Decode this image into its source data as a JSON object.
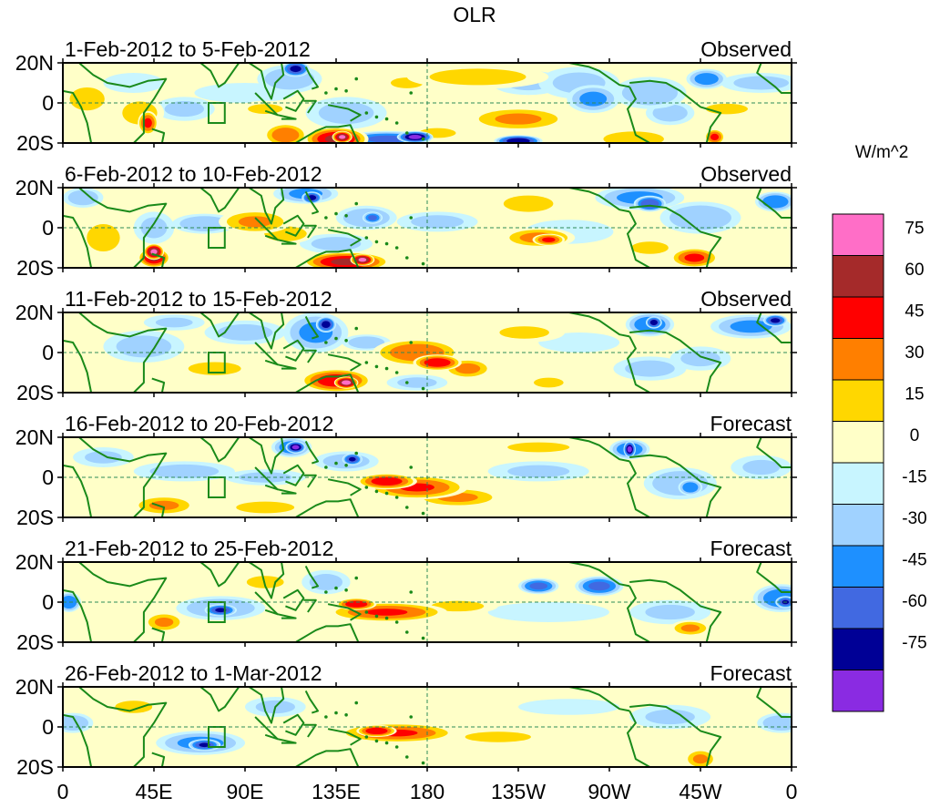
{
  "title": "OLR",
  "colorbar": {
    "unit_label": "W/m^2",
    "levels": [
      "75",
      "60",
      "45",
      "30",
      "15",
      "0",
      "-15",
      "-30",
      "-45",
      "-60",
      "-75"
    ],
    "colors": [
      "#ff6ec7",
      "#a52a2a",
      "#ff0000",
      "#ff7f00",
      "#ffd700",
      "#ffffc8",
      "#c8f5ff",
      "#a0d2ff",
      "#1e90ff",
      "#4169e1",
      "#000096",
      "#8a2be2"
    ]
  },
  "map_style": {
    "background": "#ffffc8",
    "coast_color": "#1a8a1a",
    "grid_color": "#2e8b57"
  },
  "x_ticks": [
    "0",
    "45E",
    "90E",
    "135E",
    "180",
    "135W",
    "90W",
    "45W",
    "0"
  ],
  "y_ticks": [
    "20N",
    "0",
    "20S"
  ],
  "panels": [
    {
      "period": "1-Feb-2012 to 5-Feb-2012",
      "kind": "Observed",
      "blobs": [
        {
          "lon": 262,
          "lat": 2,
          "rx": 13,
          "ry": 7,
          "v": -35
        },
        {
          "lon": 255,
          "lat": 10,
          "rx": 20,
          "ry": 8,
          "v": -20
        },
        {
          "lon": 230,
          "lat": 10,
          "rx": 18,
          "ry": 6,
          "v": -18
        },
        {
          "lon": 290,
          "lat": 5,
          "rx": 18,
          "ry": 8,
          "v": -30
        },
        {
          "lon": 300,
          "lat": -5,
          "rx": 12,
          "ry": 6,
          "v": -25
        },
        {
          "lon": 318,
          "lat": 12,
          "rx": 10,
          "ry": 5,
          "v": -40
        },
        {
          "lon": 345,
          "lat": 10,
          "rx": 20,
          "ry": 5,
          "v": -22
        },
        {
          "lon": 115,
          "lat": 17,
          "rx": 7,
          "ry": 4,
          "v": -65
        },
        {
          "lon": 112,
          "lat": 12,
          "rx": 16,
          "ry": 7,
          "v": -30
        },
        {
          "lon": 160,
          "lat": -18,
          "rx": 22,
          "ry": 4,
          "v": -50
        },
        {
          "lon": 174,
          "lat": -17,
          "rx": 9,
          "ry": 3,
          "v": -80
        },
        {
          "lon": 225,
          "lat": -19,
          "rx": 12,
          "ry": 3,
          "v": -72
        },
        {
          "lon": 140,
          "lat": -5,
          "rx": 20,
          "ry": 8,
          "v": -22
        },
        {
          "lon": 60,
          "lat": -3,
          "rx": 15,
          "ry": 6,
          "v": -20
        },
        {
          "lon": 90,
          "lat": 5,
          "rx": 25,
          "ry": 5,
          "v": -15
        },
        {
          "lon": 35,
          "lat": 10,
          "rx": 15,
          "ry": 5,
          "v": -15
        },
        {
          "lon": 12,
          "lat": 2,
          "rx": 12,
          "ry": 8,
          "v": 25
        },
        {
          "lon": 38,
          "lat": -5,
          "rx": 12,
          "ry": 8,
          "v": 25
        },
        {
          "lon": 42,
          "lat": -10,
          "rx": 5,
          "ry": 6,
          "v": 48
        },
        {
          "lon": 110,
          "lat": -16,
          "rx": 11,
          "ry": 6,
          "v": 42
        },
        {
          "lon": 135,
          "lat": -18,
          "rx": 16,
          "ry": 6,
          "v": 62
        },
        {
          "lon": 138,
          "lat": -17,
          "rx": 5,
          "ry": 3,
          "v": 78
        },
        {
          "lon": 100,
          "lat": -3,
          "rx": 14,
          "ry": 4,
          "v": 18
        },
        {
          "lon": 225,
          "lat": -8,
          "rx": 25,
          "ry": 6,
          "v": 32
        },
        {
          "lon": 205,
          "lat": 13,
          "rx": 35,
          "ry": 6,
          "v": 22
        },
        {
          "lon": 170,
          "lat": 10,
          "rx": 15,
          "ry": 5,
          "v": 15
        },
        {
          "lon": 282,
          "lat": -18,
          "rx": 20,
          "ry": 5,
          "v": 28
        },
        {
          "lon": 322,
          "lat": -17,
          "rx": 5,
          "ry": 4,
          "v": 48
        },
        {
          "lon": 328,
          "lat": -3,
          "rx": 16,
          "ry": 4,
          "v": 20
        },
        {
          "lon": 185,
          "lat": -15,
          "rx": 15,
          "ry": 4,
          "v": 18
        }
      ]
    },
    {
      "period": "6-Feb-2012 to 10-Feb-2012",
      "kind": "Observed",
      "blobs": [
        {
          "lon": 10,
          "lat": 15,
          "rx": 10,
          "ry": 5,
          "v": -28
        },
        {
          "lon": 120,
          "lat": 17,
          "rx": 16,
          "ry": 5,
          "v": -35
        },
        {
          "lon": 123,
          "lat": 15,
          "rx": 5,
          "ry": 3,
          "v": -68
        },
        {
          "lon": 150,
          "lat": 5,
          "rx": 15,
          "ry": 6,
          "v": -30
        },
        {
          "lon": 153,
          "lat": 5,
          "rx": 5,
          "ry": 3,
          "v": -50
        },
        {
          "lon": 285,
          "lat": 15,
          "rx": 22,
          "ry": 6,
          "v": -35
        },
        {
          "lon": 290,
          "lat": 12,
          "rx": 8,
          "ry": 4,
          "v": -60
        },
        {
          "lon": 315,
          "lat": 5,
          "rx": 20,
          "ry": 8,
          "v": -30
        },
        {
          "lon": 352,
          "lat": 13,
          "rx": 10,
          "ry": 5,
          "v": -45
        },
        {
          "lon": 70,
          "lat": 2,
          "rx": 16,
          "ry": 5,
          "v": -30
        },
        {
          "lon": 185,
          "lat": 3,
          "rx": 20,
          "ry": 5,
          "v": -20
        },
        {
          "lon": 250,
          "lat": -2,
          "rx": 22,
          "ry": 6,
          "v": -15
        },
        {
          "lon": 45,
          "lat": 0,
          "rx": 10,
          "ry": 8,
          "v": -20
        },
        {
          "lon": 135,
          "lat": -8,
          "rx": 18,
          "ry": 5,
          "v": -22
        },
        {
          "lon": 20,
          "lat": -5,
          "rx": 12,
          "ry": 10,
          "v": 22
        },
        {
          "lon": 45,
          "lat": -15,
          "rx": 8,
          "ry": 5,
          "v": 62
        },
        {
          "lon": 45,
          "lat": -12,
          "rx": 5,
          "ry": 4,
          "v": 78
        },
        {
          "lon": 95,
          "lat": 3,
          "rx": 18,
          "ry": 6,
          "v": 32
        },
        {
          "lon": 110,
          "lat": -3,
          "rx": 14,
          "ry": 5,
          "v": 28
        },
        {
          "lon": 140,
          "lat": -17,
          "rx": 22,
          "ry": 5,
          "v": 62
        },
        {
          "lon": 148,
          "lat": -16,
          "rx": 6,
          "ry": 3,
          "v": 78
        },
        {
          "lon": 235,
          "lat": -5,
          "rx": 18,
          "ry": 5,
          "v": 35
        },
        {
          "lon": 240,
          "lat": -6,
          "rx": 8,
          "ry": 3,
          "v": 48
        },
        {
          "lon": 230,
          "lat": 12,
          "rx": 18,
          "ry": 6,
          "v": 22
        },
        {
          "lon": 312,
          "lat": -15,
          "rx": 12,
          "ry": 5,
          "v": 48
        },
        {
          "lon": 290,
          "lat": -10,
          "rx": 15,
          "ry": 5,
          "v": 18
        }
      ]
    },
    {
      "period": "11-Feb-2012 to 15-Feb-2012",
      "kind": "Observed",
      "blobs": [
        {
          "lon": 125,
          "lat": 10,
          "rx": 16,
          "ry": 10,
          "v": -35
        },
        {
          "lon": 130,
          "lat": 14,
          "rx": 5,
          "ry": 4,
          "v": -68
        },
        {
          "lon": 90,
          "lat": 10,
          "rx": 20,
          "ry": 6,
          "v": -22
        },
        {
          "lon": 40,
          "lat": 3,
          "rx": 20,
          "ry": 8,
          "v": -22
        },
        {
          "lon": 55,
          "lat": 15,
          "rx": 15,
          "ry": 4,
          "v": -18
        },
        {
          "lon": 290,
          "lat": 14,
          "rx": 12,
          "ry": 6,
          "v": -45
        },
        {
          "lon": 292,
          "lat": 15,
          "rx": 4,
          "ry": 3,
          "v": -70
        },
        {
          "lon": 340,
          "lat": 13,
          "rx": 20,
          "ry": 6,
          "v": -35
        },
        {
          "lon": 352,
          "lat": 16,
          "rx": 6,
          "ry": 3,
          "v": -65
        },
        {
          "lon": 290,
          "lat": -8,
          "rx": 18,
          "ry": 6,
          "v": -22
        },
        {
          "lon": 315,
          "lat": -3,
          "rx": 15,
          "ry": 6,
          "v": -20
        },
        {
          "lon": 150,
          "lat": 5,
          "rx": 12,
          "ry": 4,
          "v": -28
        },
        {
          "lon": 255,
          "lat": 5,
          "rx": 20,
          "ry": 5,
          "v": -15
        },
        {
          "lon": 175,
          "lat": -15,
          "rx": 15,
          "ry": 4,
          "v": -20
        },
        {
          "lon": 135,
          "lat": -14,
          "rx": 18,
          "ry": 6,
          "v": 55
        },
        {
          "lon": 140,
          "lat": -15,
          "rx": 6,
          "ry": 3,
          "v": 82
        },
        {
          "lon": 175,
          "lat": 0,
          "rx": 22,
          "ry": 7,
          "v": 42
        },
        {
          "lon": 185,
          "lat": -5,
          "rx": 12,
          "ry": 4,
          "v": 58
        },
        {
          "lon": 200,
          "lat": -8,
          "rx": 12,
          "ry": 5,
          "v": 35
        },
        {
          "lon": 75,
          "lat": -8,
          "rx": 20,
          "ry": 5,
          "v": 20
        },
        {
          "lon": 228,
          "lat": 10,
          "rx": 20,
          "ry": 5,
          "v": 18
        },
        {
          "lon": 240,
          "lat": -15,
          "rx": 12,
          "ry": 4,
          "v": 18
        }
      ]
    },
    {
      "period": "16-Feb-2012 to 20-Feb-2012",
      "kind": "Forecast",
      "blobs": [
        {
          "lon": 113,
          "lat": 15,
          "rx": 10,
          "ry": 5,
          "v": -42
        },
        {
          "lon": 115,
          "lat": 15,
          "rx": 5,
          "ry": 3,
          "v": -80
        },
        {
          "lon": 143,
          "lat": 9,
          "rx": 5,
          "ry": 3,
          "v": -62
        },
        {
          "lon": 140,
          "lat": 8,
          "rx": 16,
          "ry": 5,
          "v": -25
        },
        {
          "lon": 280,
          "lat": 14,
          "rx": 10,
          "ry": 5,
          "v": -45
        },
        {
          "lon": 280,
          "lat": 14,
          "rx": 3,
          "ry": 4,
          "v": -82
        },
        {
          "lon": 305,
          "lat": -3,
          "rx": 18,
          "ry": 8,
          "v": -30
        },
        {
          "lon": 310,
          "lat": -5,
          "rx": 6,
          "ry": 4,
          "v": -45
        },
        {
          "lon": 60,
          "lat": 3,
          "rx": 25,
          "ry": 5,
          "v": -22
        },
        {
          "lon": 100,
          "lat": 0,
          "rx": 20,
          "ry": 4,
          "v": -20
        },
        {
          "lon": 235,
          "lat": 3,
          "rx": 25,
          "ry": 5,
          "v": -18
        },
        {
          "lon": 20,
          "lat": 10,
          "rx": 15,
          "ry": 5,
          "v": -18
        },
        {
          "lon": 345,
          "lat": 5,
          "rx": 15,
          "ry": 6,
          "v": -18
        },
        {
          "lon": 175,
          "lat": -5,
          "rx": 25,
          "ry": 6,
          "v": 45
        },
        {
          "lon": 160,
          "lat": -2,
          "rx": 15,
          "ry": 4,
          "v": 55
        },
        {
          "lon": 195,
          "lat": -10,
          "rx": 22,
          "ry": 5,
          "v": 32
        },
        {
          "lon": 50,
          "lat": -14,
          "rx": 16,
          "ry": 5,
          "v": 32
        },
        {
          "lon": 100,
          "lat": -15,
          "rx": 20,
          "ry": 4,
          "v": 25
        },
        {
          "lon": 235,
          "lat": 15,
          "rx": 25,
          "ry": 4,
          "v": 18
        }
      ]
    },
    {
      "period": "21-Feb-2012 to 25-Feb-2012",
      "kind": "Forecast",
      "blobs": [
        {
          "lon": 3,
          "lat": 0,
          "rx": 6,
          "ry": 5,
          "v": -45
        },
        {
          "lon": 78,
          "lat": -3,
          "rx": 22,
          "ry": 6,
          "v": -30
        },
        {
          "lon": 78,
          "lat": -4,
          "rx": 8,
          "ry": 3,
          "v": -62
        },
        {
          "lon": 130,
          "lat": 10,
          "rx": 12,
          "ry": 6,
          "v": -22
        },
        {
          "lon": 235,
          "lat": 8,
          "rx": 10,
          "ry": 4,
          "v": -50
        },
        {
          "lon": 265,
          "lat": 8,
          "rx": 12,
          "ry": 5,
          "v": -50
        },
        {
          "lon": 355,
          "lat": 2,
          "rx": 14,
          "ry": 7,
          "v": -45
        },
        {
          "lon": 357,
          "lat": 0,
          "rx": 5,
          "ry": 3,
          "v": -62
        },
        {
          "lon": 300,
          "lat": -5,
          "rx": 20,
          "ry": 6,
          "v": -18
        },
        {
          "lon": 240,
          "lat": -5,
          "rx": 30,
          "ry": 5,
          "v": -15
        },
        {
          "lon": 160,
          "lat": -5,
          "rx": 30,
          "ry": 5,
          "v": 45
        },
        {
          "lon": 145,
          "lat": -1,
          "rx": 10,
          "ry": 3,
          "v": 58
        },
        {
          "lon": 50,
          "lat": -10,
          "rx": 10,
          "ry": 5,
          "v": 32
        },
        {
          "lon": 310,
          "lat": -13,
          "rx": 10,
          "ry": 4,
          "v": 32
        },
        {
          "lon": 100,
          "lat": 10,
          "rx": 15,
          "ry": 5,
          "v": 18
        },
        {
          "lon": 195,
          "lat": -2,
          "rx": 20,
          "ry": 4,
          "v": 20
        }
      ]
    },
    {
      "period": "26-Feb-2012 to 1-Mar-2012",
      "kind": "Forecast",
      "blobs": [
        {
          "lon": 5,
          "lat": 2,
          "rx": 10,
          "ry": 5,
          "v": -30
        },
        {
          "lon": 68,
          "lat": -8,
          "rx": 22,
          "ry": 6,
          "v": -35
        },
        {
          "lon": 70,
          "lat": -9,
          "rx": 8,
          "ry": 3,
          "v": -62
        },
        {
          "lon": 105,
          "lat": 10,
          "rx": 15,
          "ry": 5,
          "v": -20
        },
        {
          "lon": 300,
          "lat": 5,
          "rx": 20,
          "ry": 6,
          "v": -18
        },
        {
          "lon": 355,
          "lat": 2,
          "rx": 12,
          "ry": 5,
          "v": -30
        },
        {
          "lon": 250,
          "lat": 10,
          "rx": 25,
          "ry": 4,
          "v": -15
        },
        {
          "lon": 165,
          "lat": -3,
          "rx": 30,
          "ry": 5,
          "v": 45
        },
        {
          "lon": 155,
          "lat": -2,
          "rx": 10,
          "ry": 3,
          "v": 58
        },
        {
          "lon": 315,
          "lat": -16,
          "rx": 8,
          "ry": 5,
          "v": 32
        },
        {
          "lon": 35,
          "lat": 10,
          "rx": 15,
          "ry": 5,
          "v": 18
        },
        {
          "lon": 215,
          "lat": -5,
          "rx": 25,
          "ry": 4,
          "v": 20
        }
      ]
    }
  ]
}
